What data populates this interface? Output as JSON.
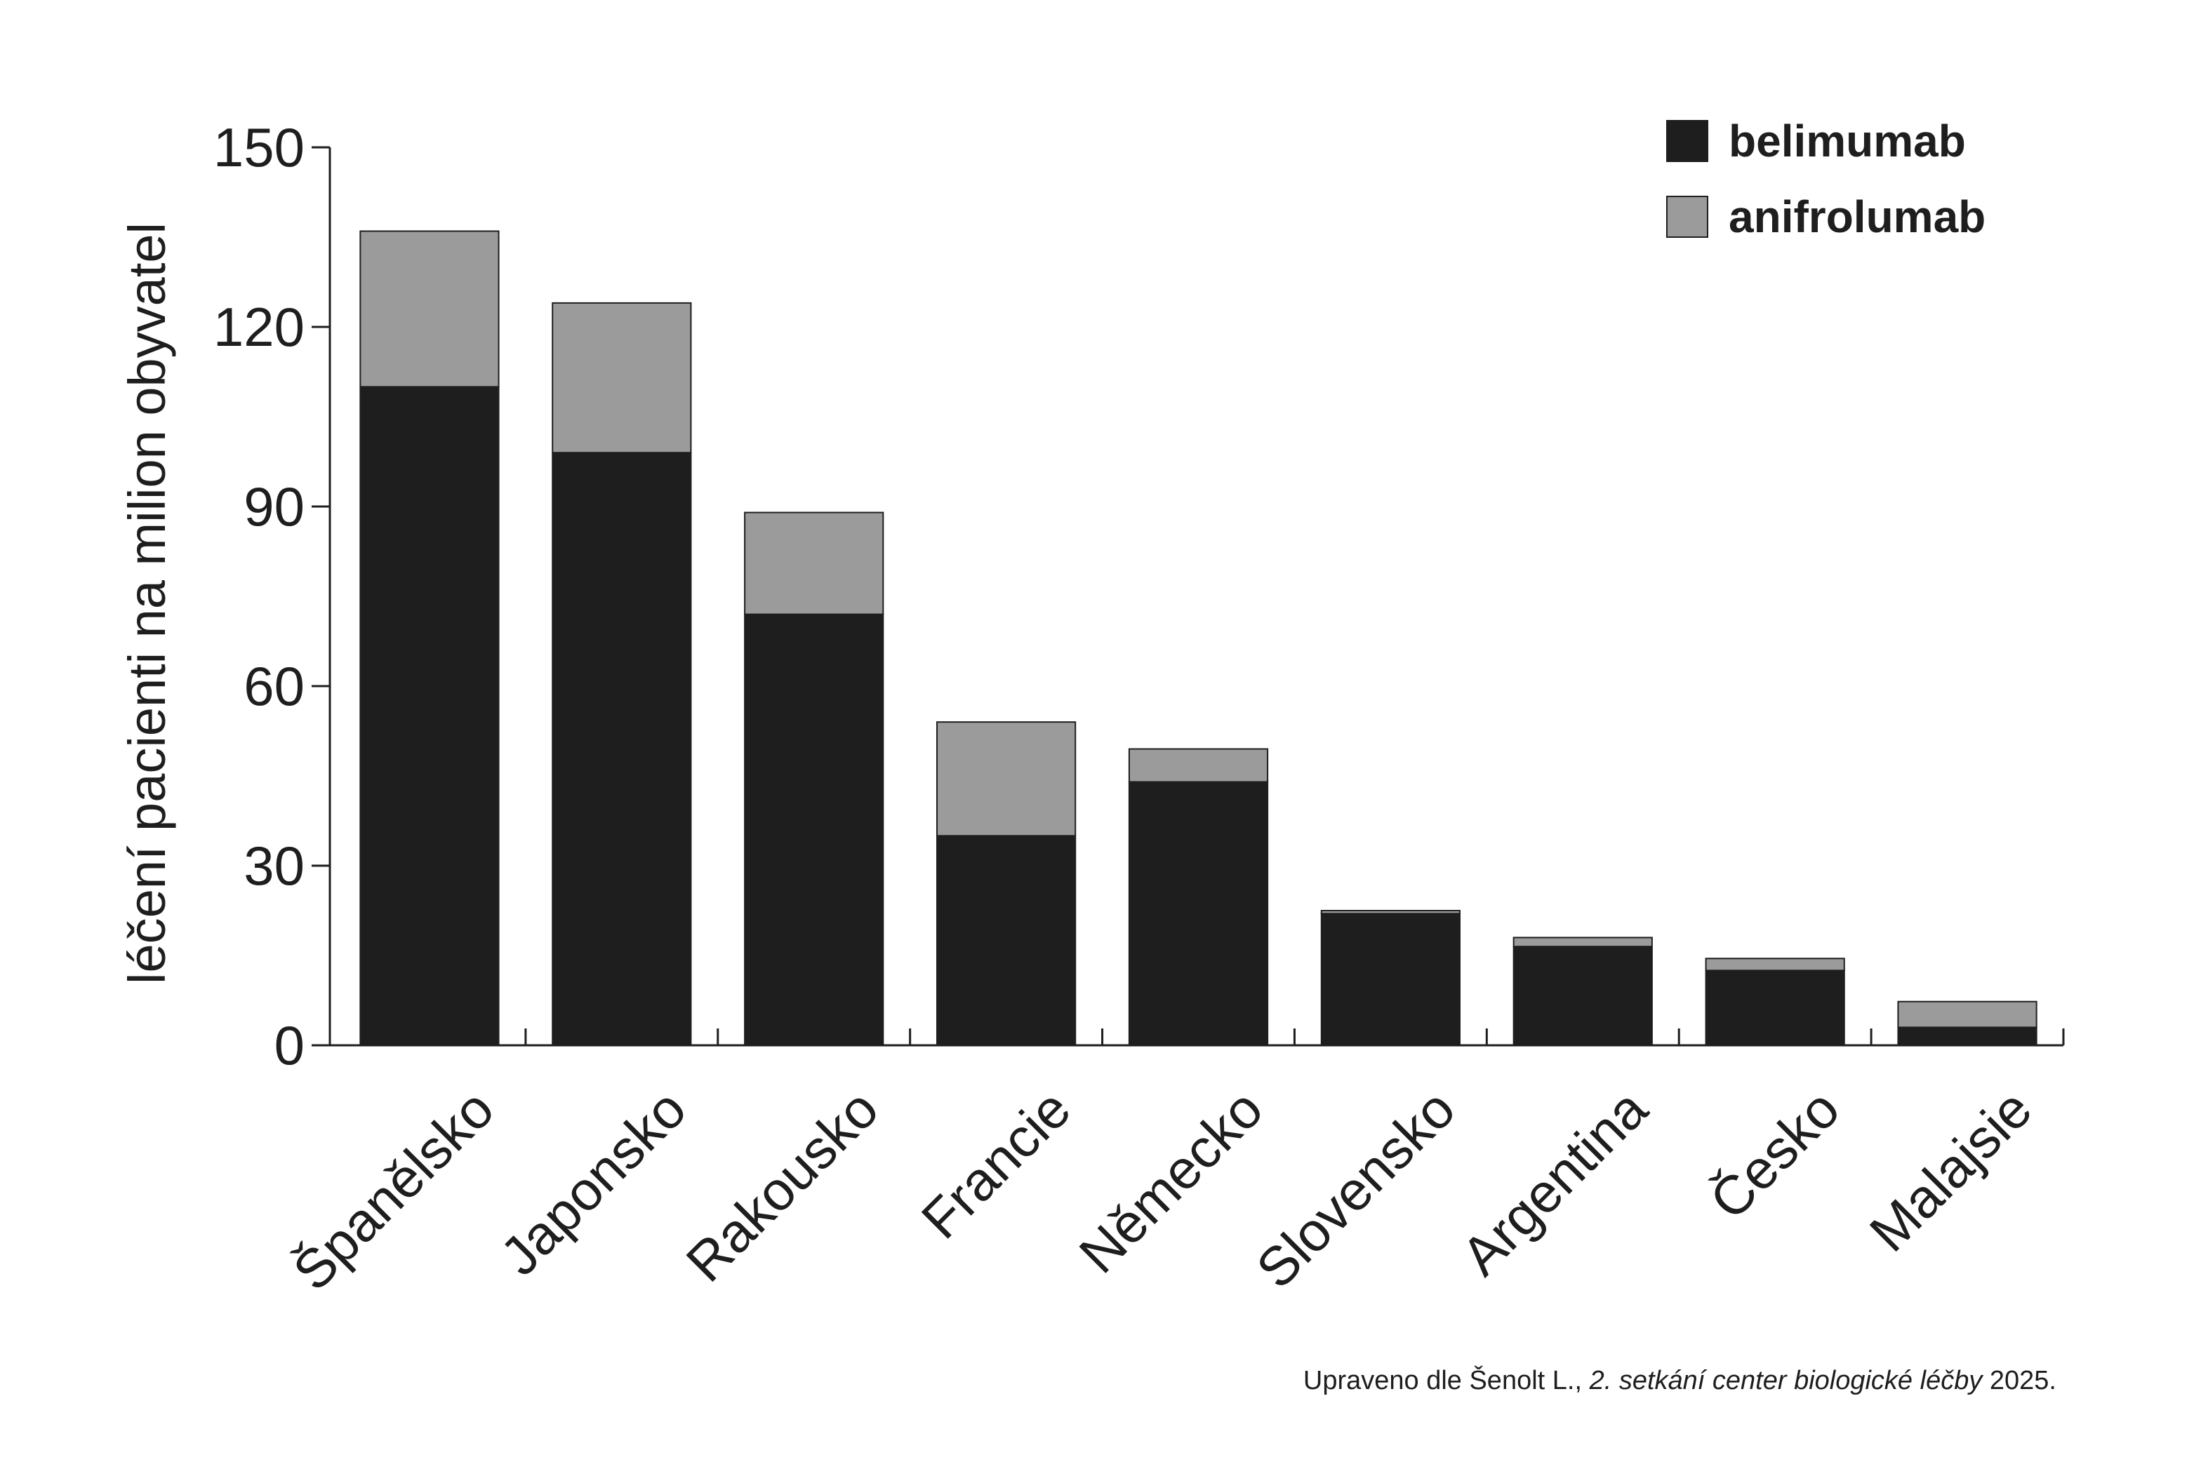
{
  "chart_data": {
    "type": "bar",
    "stacked": true,
    "title": "",
    "xlabel": "",
    "ylabel": "léčení pacienti na milion obyvatel",
    "ylim": [
      0,
      150
    ],
    "yticks": [
      0,
      30,
      60,
      90,
      120,
      150
    ],
    "categories": [
      "Španělsko",
      "Japonsko",
      "Rakousko",
      "Francie",
      "Německo",
      "Slovensko",
      "Argentina",
      "Česko",
      "Malajsie"
    ],
    "series": [
      {
        "name": "belimumab",
        "color": "#1e1e1e",
        "values": [
          110,
          99,
          72,
          35,
          44,
          22,
          16.5,
          12.5,
          3
        ]
      },
      {
        "name": "anifrolumab",
        "color": "#9b9b9b",
        "values": [
          26,
          25,
          17,
          19,
          5.5,
          0.5,
          1.5,
          2,
          4.3
        ]
      }
    ],
    "legend": "top-right",
    "grid": false
  },
  "source": {
    "prefix": "Upraveno dle Šenolt L., ",
    "italic": "2. setkání center biologické léčby",
    "suffix": " 2025."
  }
}
